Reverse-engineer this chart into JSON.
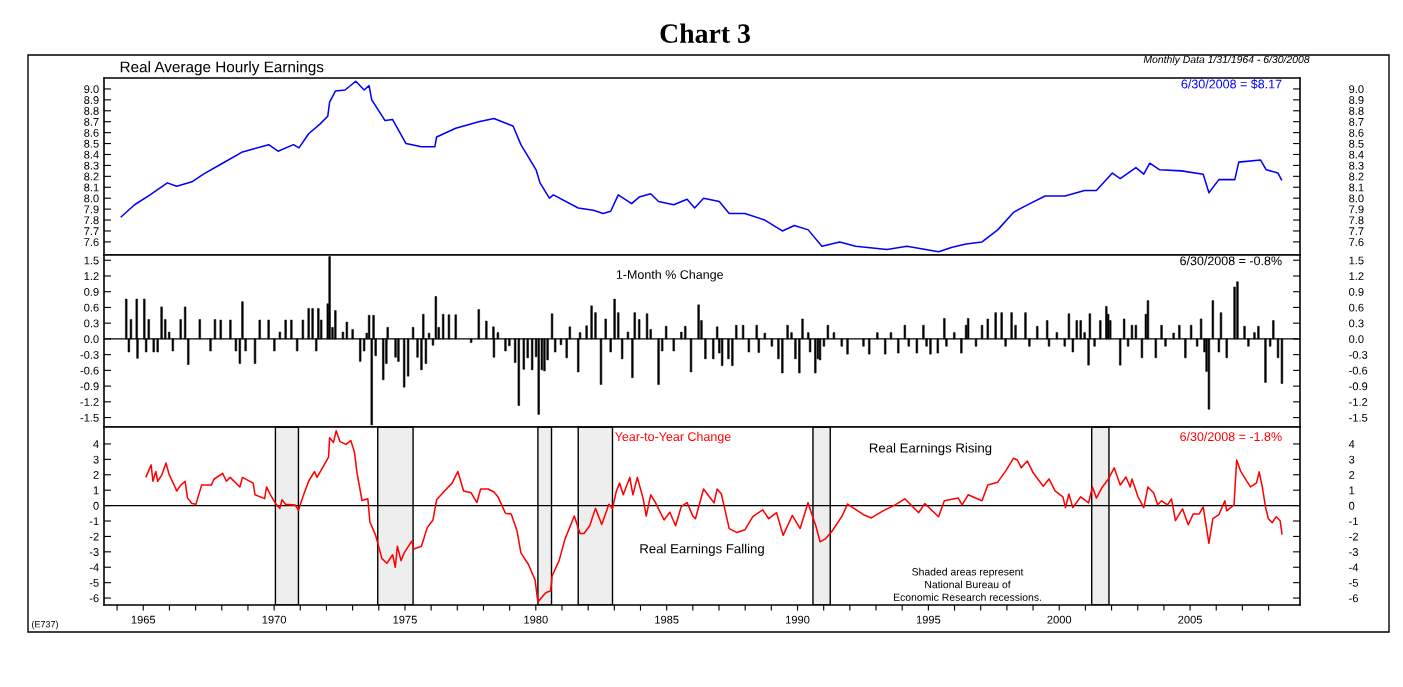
{
  "chart_data": [
    {
      "type": "line",
      "title": "Real Average Hourly Earnings",
      "annotations": [
        "Chart 3",
        "Monthly Data 1/31/1964 - 6/30/2008",
        "6/30/2008 = $8.17"
      ],
      "series": [
        {
          "color": "#0000ff",
          "x": [
            1964.16,
            1964.67,
            1965.26,
            1965.92,
            1966.28,
            1966.86,
            1967.3,
            1968.03,
            1968.76,
            1969.2,
            1969.79,
            1970.15,
            1970.74,
            1970.95,
            1971.32,
            1971.76,
            1972.05,
            1972.12,
            1972.34,
            1972.71,
            1973.12,
            1973.44,
            1973.63,
            1973.73,
            1974.24,
            1974.53,
            1975.04,
            1975.63,
            1976.14,
            1976.21,
            1976.94,
            1977.82,
            1978.4,
            1979.13,
            1979.43,
            1980.01,
            1980.16,
            1980.52,
            1980.67,
            1981.62,
            1982.2,
            1982.57,
            1982.86,
            1983.15,
            1983.66,
            1983.95,
            1984.39,
            1984.69,
            1985.27,
            1985.78,
            1986.07,
            1986.41,
            1987.01,
            1987.39,
            1987.99,
            1988.75,
            1989.42,
            1989.88,
            1990.41,
            1990.93,
            1991.61,
            1992.22,
            1993.42,
            1994.18,
            1995.39,
            1995.91,
            1996.44,
            1997.05,
            1997.65,
            1998.25,
            1998.71,
            1999.46,
            2000.22,
            2000.97,
            2001.42,
            2002.03,
            2002.33,
            2002.93,
            2003.23,
            2003.46,
            2003.84,
            2004.67,
            2005.5,
            2005.72,
            2006.1,
            2006.71,
            2006.86,
            2007.69,
            2007.91,
            2008.36,
            2008.49
          ],
          "values": [
            7.83,
            7.94,
            8.03,
            8.14,
            8.11,
            8.15,
            8.22,
            8.32,
            8.42,
            8.45,
            8.49,
            8.43,
            8.49,
            8.46,
            8.59,
            8.68,
            8.75,
            8.88,
            8.98,
            8.99,
            9.07,
            8.99,
            9.03,
            8.9,
            8.71,
            8.72,
            8.5,
            8.47,
            8.47,
            8.56,
            8.64,
            8.7,
            8.73,
            8.66,
            8.49,
            8.26,
            8.14,
            8.0,
            8.03,
            7.91,
            7.89,
            7.86,
            7.88,
            8.03,
            7.95,
            8.01,
            8.04,
            7.97,
            7.94,
            7.99,
            7.91,
            8.0,
            7.97,
            7.86,
            7.86,
            7.8,
            7.7,
            7.75,
            7.71,
            7.56,
            7.6,
            7.56,
            7.53,
            7.56,
            7.51,
            7.55,
            7.58,
            7.6,
            7.71,
            7.87,
            7.93,
            8.02,
            8.02,
            8.07,
            8.07,
            8.23,
            8.18,
            8.28,
            8.22,
            8.32,
            8.26,
            8.25,
            8.22,
            8.05,
            8.17,
            8.17,
            8.33,
            8.35,
            8.26,
            8.23,
            8.17
          ]
        }
      ],
      "xlim": [
        1963.5,
        2009.2
      ],
      "ylim": [
        7.48,
        9.1
      ],
      "yticks": [
        {
          "value": 9.0,
          "label": "9.0"
        },
        8.9,
        8.8,
        8.7,
        8.6,
        8.5,
        8.4,
        8.3,
        8.2,
        8.1,
        {
          "value": 8.0,
          "label": "8.0"
        },
        7.9,
        7.8,
        7.7,
        7.6
      ],
      "y2lim": [
        7.48,
        9.1
      ],
      "y2ticks": [
        {
          "value": 9.0,
          "label": "9.0"
        },
        8.9,
        8.8,
        8.7,
        8.6,
        8.5,
        8.4,
        8.3,
        8.2,
        8.1,
        {
          "value": 8.0,
          "label": "8.0"
        },
        7.9,
        7.8,
        7.7,
        7.6
      ],
      "tick_labels": "y"
    },
    {
      "type": "bar",
      "title": "1-Month % Change",
      "annotations": [
        "6/30/2008 = -0.8%"
      ],
      "series": [
        {
          "color": "#000000",
          "x": [
            1964.35,
            1964.45,
            1964.53,
            1964.75,
            1964.78,
            1965.04,
            1965.11,
            1965.21,
            1965.4,
            1965.55,
            1965.7,
            1965.84,
            1965.99,
            1966.13,
            1966.43,
            1966.6,
            1966.72,
            1967.16,
            1967.57,
            1967.74,
            1967.96,
            1968.33,
            1968.54,
            1968.69,
            1968.79,
            1968.91,
            1969.27,
            1969.45,
            1969.79,
            1970.01,
            1970.22,
            1970.44,
            1970.66,
            1970.88,
            1971.1,
            1971.32,
            1971.47,
            1971.61,
            1971.69,
            1971.8,
            1972.05,
            1972.12,
            1972.23,
            1972.34,
            1972.63,
            1972.78,
            1973.0,
            1973.29,
            1973.44,
            1973.54,
            1973.63,
            1973.73,
            1973.8,
            1973.88,
            1974.17,
            1974.29,
            1974.34,
            1974.64,
            1974.75,
            1974.97,
            1975.12,
            1975.31,
            1975.48,
            1975.63,
            1975.7,
            1975.8,
            1975.92,
            1976.07,
            1976.18,
            1976.29,
            1976.46,
            1976.68,
            1976.94,
            1977.53,
            1977.82,
            1978.11,
            1978.38,
            1978.4,
            1978.55,
            1978.84,
            1978.99,
            1979.21,
            1979.35,
            1979.54,
            1979.69,
            1979.86,
            1980.01,
            1980.11,
            1980.23,
            1980.33,
            1980.45,
            1980.62,
            1980.74,
            1980.96,
            1981.18,
            1981.3,
            1981.62,
            1981.69,
            1981.94,
            1982.13,
            1982.28,
            1982.49,
            1982.67,
            1982.86,
            1983.01,
            1983.15,
            1983.3,
            1983.52,
            1983.69,
            1983.78,
            1983.95,
            1984.25,
            1984.39,
            1984.69,
            1984.83,
            1984.98,
            1985.27,
            1985.56,
            1985.71,
            1985.93,
            1986.22,
            1986.33,
            1986.48,
            1986.78,
            1986.93,
            1987.01,
            1987.12,
            1987.36,
            1987.51,
            1987.66,
            1987.92,
            1988.14,
            1988.44,
            1988.52,
            1988.75,
            1989.02,
            1989.27,
            1989.42,
            1989.62,
            1989.77,
            1989.92,
            1990.07,
            1990.19,
            1990.41,
            1990.48,
            1990.68,
            1990.78,
            1990.86,
            1991.01,
            1991.16,
            1991.39,
            1991.69,
            1991.91,
            1992.52,
            1992.74,
            1993.05,
            1993.35,
            1993.57,
            1993.85,
            1994.1,
            1994.25,
            1994.56,
            1994.81,
            1994.93,
            1995.08,
            1995.36,
            1995.61,
            1995.69,
            1995.99,
            1996.26,
            1996.44,
            1996.52,
            1996.82,
            1997.05,
            1997.27,
            1997.57,
            1997.8,
            1997.95,
            1998.18,
            1998.33,
            1998.71,
            1998.86,
            1999.16,
            1999.54,
            1999.61,
            1999.91,
            2000.21,
            2000.37,
            2000.52,
            2000.67,
            2000.82,
            2000.97,
            2001.12,
            2001.17,
            2001.35,
            2001.57,
            2001.8,
            2001.87,
            2001.95,
            2002.33,
            2002.48,
            2002.63,
            2002.78,
            2002.93,
            2003.16,
            2003.31,
            2003.39,
            2003.69,
            2003.91,
            2004.06,
            2004.37,
            2004.59,
            2004.82,
            2005.04,
            2005.27,
            2005.42,
            2005.55,
            2005.63,
            2005.72,
            2005.87,
            2006.1,
            2006.18,
            2006.4,
            2006.7,
            2006.81,
            2007.08,
            2007.23,
            2007.46,
            2007.61,
            2007.88,
            2008.06,
            2008.18,
            2008.36,
            2008.51
          ],
          "values": [
            0.76,
            -0.25,
            0.37,
            0.76,
            -0.37,
            0.76,
            -0.25,
            0.37,
            -0.25,
            -0.25,
            0.61,
            0.37,
            0.13,
            -0.23,
            0.37,
            0.61,
            -0.49,
            0.37,
            -0.23,
            0.37,
            0.36,
            0.36,
            -0.23,
            -0.47,
            0.71,
            -0.23,
            -0.47,
            0.36,
            0.36,
            -0.23,
            0.13,
            0.36,
            0.36,
            -0.23,
            0.36,
            0.58,
            0.58,
            -0.23,
            0.58,
            0.36,
            0.67,
            1.57,
            0.22,
            0.54,
            0.13,
            0.32,
            0.18,
            -0.43,
            -0.23,
            0.11,
            0.45,
            -1.64,
            0.45,
            -0.32,
            -0.78,
            -0.47,
            0.22,
            -0.35,
            -0.43,
            -0.92,
            -0.71,
            0.22,
            -0.35,
            -0.59,
            0.47,
            -0.47,
            0.11,
            -0.12,
            0.81,
            0.22,
            0.47,
            0.46,
            0.46,
            -0.07,
            0.56,
            0.34,
            0.23,
            -0.35,
            0.12,
            -0.23,
            -0.13,
            -0.45,
            -1.27,
            -0.58,
            -0.36,
            -0.59,
            -0.34,
            -1.44,
            -0.59,
            -0.61,
            -0.4,
            0.48,
            -0.25,
            -0.11,
            -0.36,
            0.23,
            -0.63,
            0.12,
            0.25,
            0.63,
            0.5,
            -0.87,
            0.38,
            -0.25,
            0.76,
            0.5,
            -0.38,
            0.13,
            -0.74,
            0.5,
            0.37,
            0.48,
            0.18,
            -0.87,
            -0.23,
            0.24,
            -0.23,
            0.13,
            0.24,
            -0.63,
            0.65,
            0.35,
            -0.38,
            -0.38,
            0.23,
            -0.27,
            -0.51,
            -0.38,
            -0.51,
            0.26,
            0.26,
            -0.25,
            0.26,
            -0.26,
            0.11,
            -0.14,
            -0.38,
            -0.65,
            0.26,
            0.12,
            -0.38,
            -0.65,
            0.38,
            0.12,
            -0.25,
            -0.65,
            -0.38,
            -0.4,
            -0.14,
            0.26,
            0.12,
            -0.14,
            -0.29,
            -0.14,
            -0.29,
            0.12,
            -0.29,
            0.12,
            -0.27,
            0.26,
            -0.14,
            -0.27,
            0.26,
            -0.14,
            -0.29,
            -0.27,
            0.39,
            -0.14,
            0.12,
            -0.27,
            0.26,
            0.39,
            -0.14,
            0.26,
            0.38,
            0.5,
            0.5,
            -0.14,
            0.5,
            0.26,
            0.5,
            -0.14,
            0.24,
            0.35,
            -0.14,
            0.12,
            -0.14,
            0.48,
            -0.25,
            0.35,
            0.35,
            0.12,
            -0.5,
            0.48,
            -0.14,
            0.35,
            0.62,
            0.47,
            0.35,
            -0.5,
            0.38,
            -0.14,
            0.26,
            0.26,
            -0.36,
            0.47,
            0.73,
            -0.36,
            0.26,
            -0.14,
            0.11,
            0.26,
            -0.36,
            0.26,
            -0.14,
            0.38,
            -0.25,
            -0.62,
            -1.34,
            0.73,
            -0.25,
            0.5,
            -0.36,
            0.99,
            1.09,
            0.24,
            -0.14,
            0.12,
            0.24,
            -0.83,
            -0.14,
            0.35,
            -0.36,
            -0.85
          ]
        }
      ],
      "xlim": [
        1963.5,
        2009.2
      ],
      "ylim": [
        -1.68,
        1.6
      ],
      "yticks": [
        1.5,
        1.2,
        0.9,
        0.6,
        0.3,
        {
          "value": 0,
          "label": "0.0"
        },
        -0.3,
        -0.6,
        -0.9,
        -1.2,
        -1.5
      ],
      "y2lim": [
        -1.68,
        1.6
      ],
      "y2ticks": [
        1.5,
        1.2,
        0.9,
        0.6,
        0.3,
        {
          "value": 0,
          "label": "0.0"
        },
        -0.3,
        -0.6,
        -0.9,
        -1.2,
        -1.5
      ],
      "ref_lines": [
        {
          "axis": "y",
          "value": 0,
          "color": "#000000"
        }
      ],
      "tick_labels": "y"
    },
    {
      "type": "line",
      "title": "Year-to-Year Change",
      "annotations": [
        "6/30/2008 = -1.8%",
        "Real Earnings Rising",
        "Real Earnings Falling",
        "Shaded areas represent\nNational Bureau of\nEconomic Research recessions.",
        "(E737)"
      ],
      "series": [
        {
          "color": "#ff0000",
          "x": [
            1965.11,
            1965.3,
            1965.37,
            1965.48,
            1965.55,
            1965.7,
            1965.87,
            1965.99,
            1966.18,
            1966.28,
            1966.43,
            1966.6,
            1966.69,
            1966.86,
            1967.01,
            1967.23,
            1967.6,
            1967.7,
            1968.03,
            1968.18,
            1968.32,
            1968.69,
            1968.79,
            1969.2,
            1969.27,
            1969.64,
            1969.71,
            1969.86,
            1970.08,
            1970.22,
            1970.3,
            1970.44,
            1970.81,
            1970.93,
            1971.1,
            1971.32,
            1971.54,
            1971.64,
            1972.08,
            1972.12,
            1972.27,
            1972.37,
            1972.52,
            1972.75,
            1972.93,
            1973.07,
            1973.17,
            1973.36,
            1973.58,
            1973.66,
            1973.88,
            1974.12,
            1974.31,
            1974.53,
            1974.63,
            1974.71,
            1974.85,
            1974.97,
            1975.26,
            1975.34,
            1975.63,
            1975.85,
            1976.07,
            1976.21,
            1976.51,
            1976.8,
            1977.02,
            1977.24,
            1977.53,
            1977.75,
            1977.89,
            1978.18,
            1978.4,
            1978.55,
            1978.84,
            1979.06,
            1979.28,
            1979.43,
            1979.72,
            1979.97,
            1980.08,
            1980.23,
            1980.38,
            1980.57,
            1980.62,
            1980.89,
            1981.11,
            1981.47,
            1981.69,
            1981.84,
            1982.06,
            1982.28,
            1982.52,
            1982.79,
            1982.93,
            1983.08,
            1983.2,
            1983.34,
            1983.59,
            1983.71,
            1983.88,
            1984.1,
            1984.22,
            1984.39,
            1984.57,
            1984.9,
            1985.12,
            1985.34,
            1985.56,
            1985.78,
            1986.0,
            1986.1,
            1986.41,
            1986.63,
            1986.81,
            1986.93,
            1987.09,
            1987.39,
            1987.69,
            1987.99,
            1988.29,
            1988.67,
            1988.9,
            1989.2,
            1989.45,
            1989.8,
            1990.1,
            1990.4,
            1990.71,
            1990.86,
            1991.08,
            1991.31,
            1991.69,
            1991.91,
            1992.52,
            1992.82,
            1993.27,
            1993.73,
            1994.1,
            1994.63,
            1994.86,
            1995.39,
            1995.61,
            1996.14,
            1996.29,
            1996.52,
            1997.05,
            1997.27,
            1997.65,
            1997.95,
            1998.25,
            1998.4,
            1998.55,
            1998.78,
            1999.01,
            1999.39,
            1999.61,
            1999.84,
            2000.14,
            2000.24,
            2000.37,
            2000.52,
            2000.82,
            2001.12,
            2001.27,
            2001.42,
            2001.65,
            2001.88,
            2002.1,
            2002.33,
            2002.55,
            2002.71,
            2002.78,
            2003.01,
            2003.23,
            2003.39,
            2003.61,
            2003.76,
            2003.91,
            2004.14,
            2004.29,
            2004.44,
            2004.71,
            2004.93,
            2005.12,
            2005.35,
            2005.5,
            2005.72,
            2005.87,
            2006.1,
            2006.33,
            2006.4,
            2006.68,
            2006.78,
            2006.93,
            2007.16,
            2007.31,
            2007.54,
            2007.64,
            2007.76,
            2007.88,
            2007.99,
            2008.14,
            2008.29,
            2008.44,
            2008.51
          ],
          "values": [
            1.88,
            2.64,
            1.58,
            2.21,
            1.58,
            1.96,
            2.76,
            2.01,
            1.33,
            0.95,
            1.33,
            1.58,
            0.5,
            0.13,
            0.08,
            1.33,
            1.33,
            1.71,
            2.09,
            1.58,
            1.83,
            1.21,
            1.83,
            1.46,
            0.7,
            0.45,
            1.21,
            0.7,
            0.08,
            -0.18,
            0.38,
            0.08,
            0.03,
            -0.3,
            0.58,
            1.58,
            2.21,
            1.83,
            3.14,
            4.4,
            4.1,
            4.85,
            4.15,
            3.97,
            4.22,
            3.47,
            2.09,
            0.33,
            0.45,
            -1.06,
            -1.93,
            -3.44,
            -3.74,
            -3.19,
            -4.0,
            -2.64,
            -3.57,
            -3.07,
            -2.31,
            -2.81,
            -2.64,
            -1.43,
            -0.93,
            0.38,
            0.95,
            1.46,
            2.21,
            0.95,
            0.83,
            0.2,
            1.08,
            1.08,
            0.88,
            0.58,
            -0.5,
            -0.55,
            -1.63,
            -3.07,
            -3.82,
            -4.82,
            -6.26,
            -5.95,
            -5.65,
            -5.53,
            -4.57,
            -3.57,
            -2.19,
            -0.68,
            -1.81,
            -1.81,
            -1.31,
            -0.18,
            -1.23,
            0.08,
            -0.18,
            0.95,
            1.46,
            0.7,
            1.83,
            0.7,
            1.83,
            0.45,
            -0.68,
            0.7,
            0.2,
            -0.93,
            -0.43,
            -1.31,
            -0.05,
            0.2,
            -0.68,
            -0.85,
            1.08,
            0.57,
            0.18,
            1.08,
            0.75,
            -1.49,
            -1.75,
            -1.57,
            -0.72,
            -0.28,
            -0.85,
            -0.46,
            -1.93,
            -0.64,
            -1.49,
            0.18,
            -1.37,
            -2.35,
            -2.14,
            -1.68,
            -0.72,
            0.1,
            -0.59,
            -0.8,
            -0.34,
            0.05,
            0.44,
            -0.46,
            0.13,
            -0.72,
            0.31,
            0.49,
            0.05,
            0.7,
            0.31,
            1.34,
            1.52,
            2.24,
            3.07,
            2.96,
            2.45,
            2.89,
            2.11,
            1.26,
            1.73,
            0.95,
            0.57,
            -0.13,
            0.75,
            -0.13,
            0.57,
            0.18,
            1.21,
            0.49,
            1.21,
            1.73,
            2.45,
            1.34,
            1.86,
            1.21,
            1.73,
            0.57,
            -0.13,
            1.21,
            0.82,
            0.05,
            0.31,
            0.05,
            0.44,
            -0.98,
            -0.21,
            -1.24,
            -0.54,
            -0.54,
            -0.08,
            -2.45,
            -0.85,
            -0.59,
            0.31,
            -0.34,
            0.05,
            2.96,
            2.24,
            1.6,
            1.21,
            1.47,
            2.19,
            1.21,
            -0.08,
            -0.85,
            -1.11,
            -0.72,
            -0.98,
            -1.83
          ]
        }
      ],
      "xlim": [
        1963.5,
        2009.2
      ],
      "ylim": [
        -6.45,
        5.1
      ],
      "yticks": [
        4,
        3,
        2,
        1,
        0,
        -1,
        -2,
        -3,
        -4,
        -5,
        -6
      ],
      "y2lim": [
        -6.45,
        5.1
      ],
      "y2ticks": [
        4,
        3,
        2,
        1,
        0,
        -1,
        -2,
        -3,
        -4,
        -5,
        -6
      ],
      "xticks": [
        {
          "value": 1964,
          "label": null
        },
        1965,
        {
          "value": 1966,
          "label": null
        },
        {
          "value": 1967,
          "label": null
        },
        {
          "value": 1968,
          "label": null
        },
        {
          "value": 1969,
          "label": null
        },
        1970,
        {
          "value": 1971,
          "label": null
        },
        {
          "value": 1972,
          "label": null
        },
        {
          "value": 1973,
          "label": null
        },
        {
          "value": 1974,
          "label": null
        },
        1975,
        {
          "value": 1976,
          "label": null
        },
        {
          "value": 1977,
          "label": null
        },
        {
          "value": 1978,
          "label": null
        },
        {
          "value": 1979,
          "label": null
        },
        1980,
        {
          "value": 1981,
          "label": null
        },
        {
          "value": 1982,
          "label": null
        },
        {
          "value": 1983,
          "label": null
        },
        {
          "value": 1984,
          "label": null
        },
        1985,
        {
          "value": 1986,
          "label": null
        },
        {
          "value": 1987,
          "label": null
        },
        {
          "value": 1988,
          "label": null
        },
        {
          "value": 1989,
          "label": null
        },
        1990,
        {
          "value": 1991,
          "label": null
        },
        {
          "value": 1992,
          "label": null
        },
        {
          "value": 1993,
          "label": null
        },
        {
          "value": 1994,
          "label": null
        },
        1995,
        {
          "value": 1996,
          "label": null
        },
        {
          "value": 1997,
          "label": null
        },
        {
          "value": 1998,
          "label": null
        },
        {
          "value": 1999,
          "label": null
        },
        2000,
        {
          "value": 2001,
          "label": null
        },
        {
          "value": 2002,
          "label": null
        },
        {
          "value": 2003,
          "label": null
        },
        {
          "value": 2004,
          "label": null
        },
        2005,
        {
          "value": 2006,
          "label": null
        },
        {
          "value": 2007,
          "label": null
        },
        {
          "value": 2008,
          "label": null
        }
      ],
      "ref_lines": [
        {
          "axis": "y",
          "value": 0,
          "color": "#000000"
        }
      ],
      "bands": [
        {
          "axis": "x",
          "from": 1970.05,
          "to": 1970.93,
          "color": "#eeeeee"
        },
        {
          "axis": "x",
          "from": 1973.96,
          "to": 1975.31,
          "color": "#eeeeee"
        },
        {
          "axis": "x",
          "from": 1980.08,
          "to": 1980.6,
          "color": "#eeeeee"
        },
        {
          "axis": "x",
          "from": 1981.62,
          "to": 1982.93,
          "color": "#eeeeee"
        },
        {
          "axis": "x",
          "from": 1990.59,
          "to": 1991.25,
          "color": "#eeeeee"
        },
        {
          "axis": "x",
          "from": 2001.24,
          "to": 2001.9,
          "color": "#eeeeee"
        }
      ]
    }
  ]
}
